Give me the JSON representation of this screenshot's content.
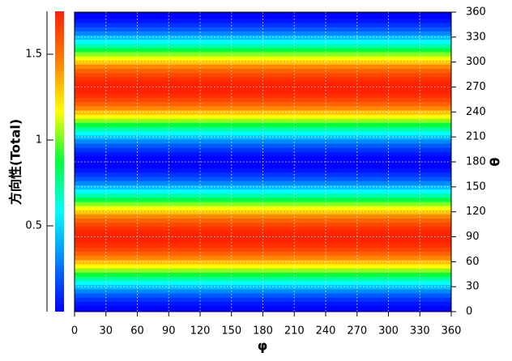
{
  "chart_data": {
    "type": "heatmap",
    "x_label": "φ",
    "y_label": "θ",
    "colorbar_label": "方向性(Total)",
    "xlim": [
      0,
      360
    ],
    "xticks": [
      0,
      30,
      60,
      90,
      120,
      150,
      180,
      210,
      240,
      270,
      300,
      330,
      360
    ],
    "ylim": [
      0,
      360
    ],
    "yticks": [
      0,
      30,
      60,
      90,
      120,
      150,
      180,
      210,
      240,
      270,
      300,
      330,
      360
    ],
    "grid": true,
    "colorbar_lim": [
      0,
      1.75
    ],
    "colorbar_ticks": [
      0.5,
      1,
      1.5
    ],
    "colormap": [
      "#0000ff",
      "#0080ff",
      "#00ffff",
      "#00ff40",
      "#ffff00",
      "#ff8000",
      "#ff2000"
    ],
    "theta": [
      0,
      5,
      10,
      15,
      20,
      25,
      30,
      35,
      40,
      45,
      50,
      55,
      60,
      65,
      70,
      75,
      80,
      85,
      90,
      95,
      100,
      105,
      110,
      115,
      120,
      125,
      130,
      135,
      140,
      145,
      150,
      155,
      160,
      165,
      170,
      175,
      180,
      185,
      190,
      195,
      200,
      205,
      210,
      215,
      220,
      225,
      230,
      235,
      240,
      245,
      250,
      255,
      260,
      265,
      270,
      275,
      280,
      285,
      290,
      295,
      300,
      305,
      310,
      315,
      320,
      325,
      330,
      335,
      340,
      345,
      350,
      355,
      360
    ],
    "values": [
      0,
      0.01,
      0.05,
      0.12,
      0.2,
      0.31,
      0.44,
      0.58,
      0.72,
      0.88,
      1.03,
      1.17,
      1.31,
      1.44,
      1.55,
      1.63,
      1.7,
      1.74,
      1.75,
      1.74,
      1.7,
      1.63,
      1.55,
      1.44,
      1.31,
      1.17,
      1.03,
      0.88,
      0.72,
      0.58,
      0.44,
      0.31,
      0.2,
      0.12,
      0.05,
      0.01,
      0,
      0.01,
      0.05,
      0.12,
      0.2,
      0.31,
      0.44,
      0.58,
      0.72,
      0.88,
      1.03,
      1.17,
      1.31,
      1.44,
      1.55,
      1.63,
      1.7,
      1.74,
      1.75,
      1.74,
      1.7,
      1.63,
      1.55,
      1.44,
      1.31,
      1.17,
      1.03,
      0.88,
      0.72,
      0.58,
      0.44,
      0.31,
      0.2,
      0.12,
      0.05,
      0.01,
      0
    ]
  }
}
